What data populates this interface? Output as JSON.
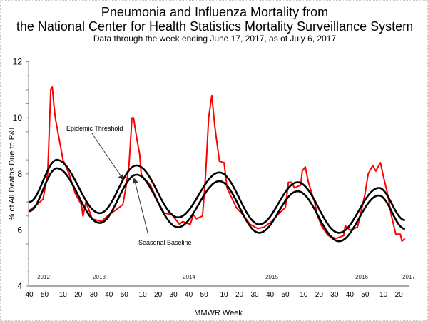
{
  "chart_data": {
    "type": "line",
    "title": "Pneumonia and Influenza Mortality from",
    "title_line2": "the National Center for Health Statistics Mortality Surveillance System",
    "subtitle": "Data through the week ending June 17, 2017, as of July 6, 2017",
    "xlabel": "MMWR Week",
    "ylabel": "% of All Deaths Due to P&I",
    "ylim": [
      4,
      12
    ],
    "yticks": [
      "4",
      "6",
      "8",
      "10",
      "12"
    ],
    "xlim": [
      "2012-40",
      "2017-24"
    ],
    "xtick_labels": [
      "40",
      "50",
      "10",
      "20",
      "30",
      "40",
      "50",
      "10",
      "20",
      "30",
      "40",
      "50",
      "10",
      "20",
      "30",
      "40",
      "50",
      "10",
      "20",
      "30",
      "40",
      "50",
      "10",
      "20"
    ],
    "year_labels": [
      "2012",
      "2013",
      "2014",
      "2015",
      "2016",
      "2017"
    ],
    "grid": false,
    "colors": {
      "pi": "#ff0000",
      "baseline": "#000000",
      "threshold": "#000000"
    },
    "annotations": {
      "threshold": "Epidemic Threshold",
      "baseline": "Seasonal Baseline"
    },
    "series": [
      {
        "key": "pi",
        "points": [
          [
            "2012-40",
            6.7
          ],
          [
            "2012-45",
            6.9
          ],
          [
            "2012-49",
            7.1
          ],
          [
            "2012-52",
            8.0
          ],
          [
            "2013-01",
            9.5
          ],
          [
            "2013-02",
            11.0
          ],
          [
            "2013-03",
            11.1
          ],
          [
            "2013-04",
            10.5
          ],
          [
            "2013-05",
            10.0
          ],
          [
            "2013-07",
            9.4
          ],
          [
            "2013-09",
            8.8
          ],
          [
            "2013-10",
            8.5
          ],
          [
            "2013-14",
            8.0
          ],
          [
            "2013-18",
            7.3
          ],
          [
            "2013-22",
            6.9
          ],
          [
            "2013-23",
            6.5
          ],
          [
            "2013-25",
            7.0
          ],
          [
            "2013-29",
            6.4
          ],
          [
            "2013-35",
            6.3
          ],
          [
            "2013-39",
            6.5
          ],
          [
            "2013-44",
            6.7
          ],
          [
            "2013-49",
            6.9
          ],
          [
            "2013-51",
            7.5
          ],
          [
            "2014-01",
            8.3
          ],
          [
            "2014-03",
            10.0
          ],
          [
            "2014-04",
            10.0
          ],
          [
            "2014-06",
            9.3
          ],
          [
            "2014-08",
            8.7
          ],
          [
            "2014-09",
            8.0
          ],
          [
            "2014-10",
            7.9
          ],
          [
            "2014-15",
            7.6
          ],
          [
            "2014-20",
            7.0
          ],
          [
            "2014-24",
            6.6
          ],
          [
            "2014-29",
            6.55
          ],
          [
            "2014-34",
            6.2
          ],
          [
            "2014-36",
            6.3
          ],
          [
            "2014-41",
            6.2
          ],
          [
            "2014-43",
            6.55
          ],
          [
            "2014-45",
            6.4
          ],
          [
            "2014-49",
            6.5
          ],
          [
            "2014-50",
            7.2
          ],
          [
            "2014-51",
            8.0
          ],
          [
            "2014-53",
            10.0
          ],
          [
            "2015-02",
            10.8
          ],
          [
            "2015-04",
            9.7
          ],
          [
            "2015-07",
            8.45
          ],
          [
            "2015-10",
            8.4
          ],
          [
            "2015-12",
            7.5
          ],
          [
            "2015-18",
            6.8
          ],
          [
            "2015-23",
            6.5
          ],
          [
            "2015-27",
            6.2
          ],
          [
            "2015-32",
            6.05
          ],
          [
            "2015-36",
            6.1
          ],
          [
            "2015-41",
            6.3
          ],
          [
            "2015-46",
            6.6
          ],
          [
            "2015-50",
            6.8
          ],
          [
            "2015-52",
            7.7
          ],
          [
            "2016-02",
            7.7
          ],
          [
            "2016-04",
            7.5
          ],
          [
            "2016-08",
            7.6
          ],
          [
            "2016-09",
            8.1
          ],
          [
            "2016-11",
            8.25
          ],
          [
            "2016-13",
            7.7
          ],
          [
            "2016-17",
            7.0
          ],
          [
            "2016-19",
            6.5
          ],
          [
            "2016-22",
            6.1
          ],
          [
            "2016-26",
            5.8
          ],
          [
            "2016-31",
            5.7
          ],
          [
            "2016-36",
            5.8
          ],
          [
            "2016-37",
            6.15
          ],
          [
            "2016-40",
            6.0
          ],
          [
            "2016-45",
            6.1
          ],
          [
            "2016-48",
            6.8
          ],
          [
            "2016-50",
            7.3
          ],
          [
            "2016-52",
            8.0
          ],
          [
            "2017-03",
            8.3
          ],
          [
            "2017-05",
            8.1
          ],
          [
            "2017-08",
            8.4
          ],
          [
            "2017-10",
            7.9
          ],
          [
            "2017-13",
            7.2
          ],
          [
            "2017-15",
            6.55
          ],
          [
            "2017-18",
            5.85
          ],
          [
            "2017-21",
            5.85
          ],
          [
            "2017-22",
            5.6
          ],
          [
            "2017-24",
            5.7
          ]
        ]
      },
      {
        "key": "threshold",
        "name": "Epidemic Threshold",
        "extrema": [
          [
            "2012-40",
            7.0
          ],
          [
            "2013-06",
            8.5
          ],
          [
            "2013-34",
            6.6
          ],
          [
            "2014-06",
            8.3
          ],
          [
            "2014-33",
            6.45
          ],
          [
            "2015-07",
            8.05
          ],
          [
            "2015-33",
            6.2
          ],
          [
            "2016-06",
            7.7
          ],
          [
            "2016-33",
            5.9
          ],
          [
            "2017-07",
            7.5
          ],
          [
            "2017-24",
            6.35
          ]
        ]
      },
      {
        "key": "baseline",
        "name": "Seasonal Baseline",
        "extrema": [
          [
            "2012-40",
            6.67
          ],
          [
            "2013-06",
            8.2
          ],
          [
            "2013-34",
            6.25
          ],
          [
            "2014-06",
            7.97
          ],
          [
            "2014-33",
            6.1
          ],
          [
            "2015-07",
            7.74
          ],
          [
            "2015-33",
            5.9
          ],
          [
            "2016-06",
            7.38
          ],
          [
            "2016-33",
            5.6
          ],
          [
            "2017-07",
            7.23
          ],
          [
            "2017-24",
            6.04
          ]
        ]
      }
    ]
  }
}
